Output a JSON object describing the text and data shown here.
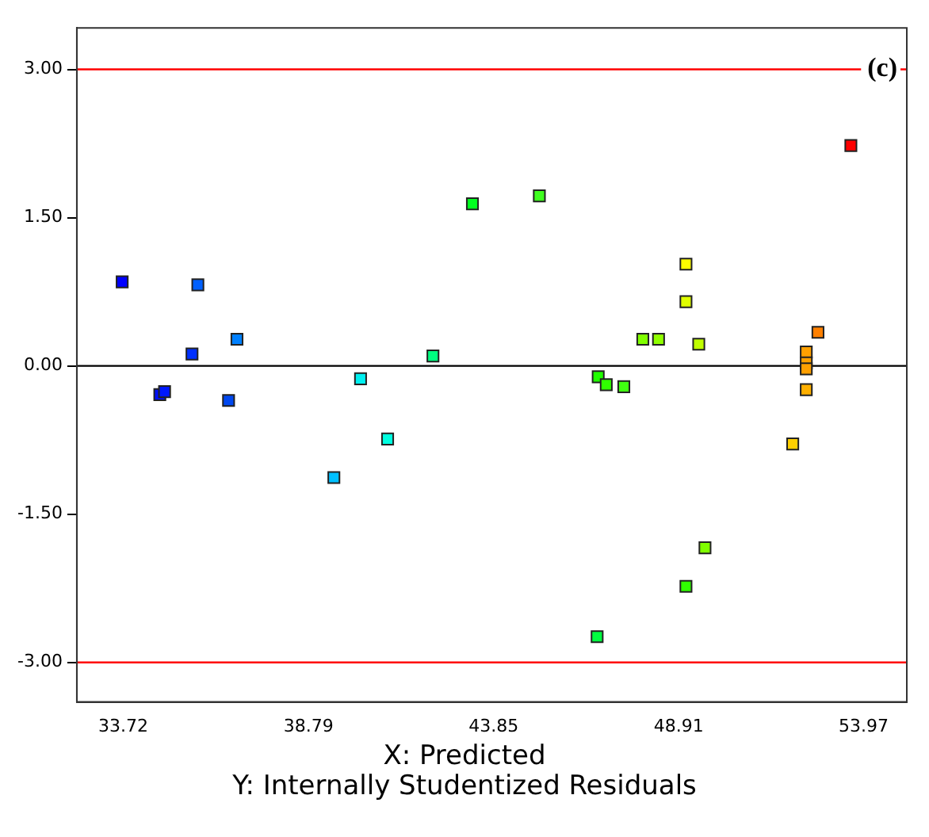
{
  "chart_data": {
    "type": "scatter",
    "xlabel": "X: Predicted",
    "annotations": [
      "(c)",
      "Y: Internally Studentized Residuals"
    ],
    "x": [
      33.69,
      34.72,
      34.85,
      35.6,
      35.76,
      36.6,
      36.83,
      39.48,
      40.21,
      40.95,
      42.19,
      43.27,
      45.1,
      46.68,
      46.71,
      46.93,
      47.41,
      47.93,
      48.36,
      49.11,
      49.11,
      49.11,
      49.46,
      49.63,
      52.03,
      52.4,
      52.4,
      52.4,
      52.4,
      52.72,
      53.62
    ],
    "values": [
      0.85,
      -0.29,
      -0.26,
      0.12,
      0.82,
      -0.35,
      0.27,
      -1.13,
      -0.13,
      -0.74,
      0.1,
      1.64,
      1.72,
      -2.74,
      -0.11,
      -0.19,
      -0.21,
      0.27,
      0.27,
      1.03,
      0.65,
      -2.23,
      0.22,
      -1.84,
      -0.79,
      0.14,
      0.03,
      -0.03,
      -0.24,
      0.34,
      2.23
    ],
    "colors": [
      "#0000ff",
      "#0010ff",
      "#0018ff",
      "#0030ff",
      "#0060ff",
      "#0048f0",
      "#0080ff",
      "#00c0ff",
      "#00f0f0",
      "#00ffe0",
      "#00ff80",
      "#00ff20",
      "#40ff20",
      "#00ff40",
      "#20ff00",
      "#30ff00",
      "#40ff10",
      "#80ff00",
      "#90ff00",
      "#ffff00",
      "#e0ff00",
      "#30ff00",
      "#c0ff00",
      "#80ff00",
      "#ffd000",
      "#ffa000",
      "#ffa000",
      "#ffa000",
      "#ffb000",
      "#ff8000",
      "#ff0000"
    ],
    "marker": "square",
    "grid": false,
    "legend": false,
    "xlim": [
      32.45,
      55.15
    ],
    "xticks": [
      33.72,
      38.79,
      43.85,
      48.91,
      53.97
    ],
    "ylim": [
      -3.4,
      3.42
    ],
    "yticks": [
      {
        "value": -3,
        "label": "-3.00"
      },
      {
        "value": -1.5,
        "label": "-1.50"
      },
      {
        "value": 0,
        "label": "0.00"
      },
      {
        "value": 1.5,
        "label": "1.50"
      },
      {
        "value": 3,
        "label": "3.00"
      }
    ],
    "ref_lines": [
      {
        "axis": "y",
        "value": 3,
        "color": "#ff0000"
      },
      {
        "axis": "y",
        "value": -3,
        "color": "#ff0000"
      },
      {
        "axis": "y",
        "value": 0,
        "color": "#000000"
      }
    ]
  }
}
